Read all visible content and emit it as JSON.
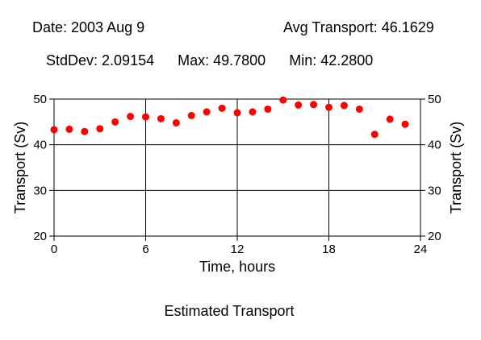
{
  "header": {
    "date": "Date: 2003 Aug 9",
    "avg": "Avg Transport: 46.1629",
    "stddev": "StdDev: 2.09154",
    "max": "Max: 49.7800",
    "min": "Min: 42.2800"
  },
  "caption": "Estimated Transport",
  "colors": {
    "marker": "#ff0000",
    "axis": "#000000",
    "background": "#ffffff"
  },
  "chart_data": {
    "type": "scatter",
    "title": "",
    "xlabel": "Time, hours",
    "ylabel": "Transport (Sv)",
    "ylabel_right": "Transport (Sv)",
    "xlim": [
      0,
      24
    ],
    "ylim": [
      20,
      50
    ],
    "x_ticks": [
      0,
      6,
      12,
      18,
      24
    ],
    "y_ticks": [
      20,
      30,
      40,
      50
    ],
    "grid": true,
    "series": [
      {
        "x": [
          0,
          1,
          2,
          3,
          4,
          5,
          6,
          7,
          8,
          9,
          10,
          11,
          12,
          13,
          14,
          15,
          16,
          17,
          18,
          19,
          20,
          21,
          22,
          23
        ],
        "values": [
          43.3,
          43.4,
          42.9,
          43.5,
          45.0,
          46.2,
          46.1,
          45.7,
          44.8,
          46.4,
          47.2,
          48.0,
          47.0,
          47.2,
          47.8,
          49.78,
          48.7,
          48.8,
          48.2,
          48.6,
          47.8,
          42.28,
          45.6,
          44.5
        ]
      }
    ]
  }
}
